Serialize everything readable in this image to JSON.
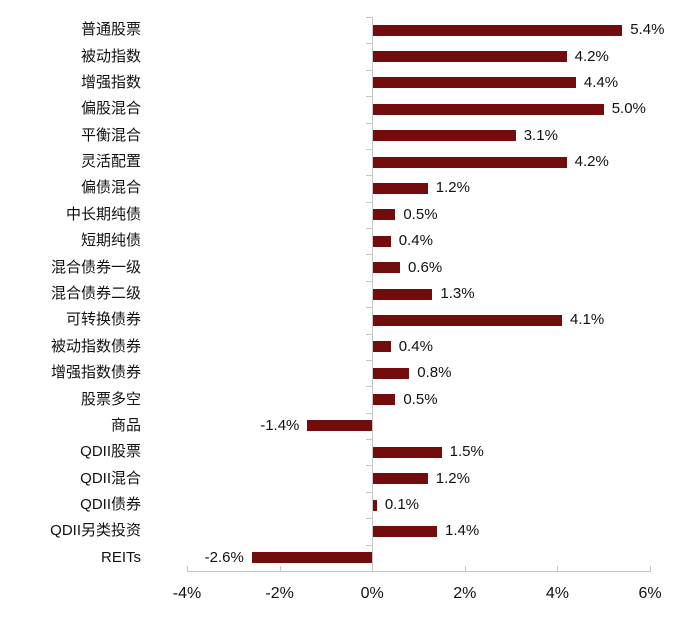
{
  "chart_data": {
    "type": "bar",
    "orientation": "horizontal",
    "title": "",
    "xlabel": "",
    "ylabel": "",
    "unit": "%",
    "xlim": [
      -4,
      6
    ],
    "grid": false,
    "legend": null,
    "x_ticks": [
      {
        "value": -4,
        "label": "-4%"
      },
      {
        "value": -2,
        "label": "-2%"
      },
      {
        "value": 0,
        "label": "0%"
      },
      {
        "value": 2,
        "label": "2%"
      },
      {
        "value": 4,
        "label": "4%"
      },
      {
        "value": 6,
        "label": "6%"
      }
    ],
    "bars": [
      {
        "category": "普通股票",
        "value": 5.4,
        "label": "5.4%"
      },
      {
        "category": "被动指数",
        "value": 4.2,
        "label": "4.2%"
      },
      {
        "category": "增强指数",
        "value": 4.4,
        "label": "4.4%"
      },
      {
        "category": "偏股混合",
        "value": 5.0,
        "label": "5.0%"
      },
      {
        "category": "平衡混合",
        "value": 3.1,
        "label": "3.1%"
      },
      {
        "category": "灵活配置",
        "value": 4.2,
        "label": "4.2%"
      },
      {
        "category": "偏债混合",
        "value": 1.2,
        "label": "1.2%"
      },
      {
        "category": "中长期纯债",
        "value": 0.5,
        "label": "0.5%"
      },
      {
        "category": "短期纯债",
        "value": 0.4,
        "label": "0.4%"
      },
      {
        "category": "混合债券一级",
        "value": 0.6,
        "label": "0.6%"
      },
      {
        "category": "混合债券二级",
        "value": 1.3,
        "label": "1.3%"
      },
      {
        "category": "可转换债券",
        "value": 4.1,
        "label": "4.1%"
      },
      {
        "category": "被动指数债券",
        "value": 0.4,
        "label": "0.4%"
      },
      {
        "category": "增强指数债券",
        "value": 0.8,
        "label": "0.8%"
      },
      {
        "category": "股票多空",
        "value": 0.5,
        "label": "0.5%"
      },
      {
        "category": "商品",
        "value": -1.4,
        "label": "-1.4%"
      },
      {
        "category": "QDII股票",
        "value": 1.5,
        "label": "1.5%"
      },
      {
        "category": "QDII混合",
        "value": 1.2,
        "label": "1.2%"
      },
      {
        "category": "QDII债券",
        "value": 0.1,
        "label": "0.1%"
      },
      {
        "category": "QDII另类投资",
        "value": 1.4,
        "label": "1.4%"
      },
      {
        "category": "REITs",
        "value": -2.6,
        "label": "-2.6%"
      }
    ],
    "colors": {
      "bar": "#730C0C",
      "axis": "#C6C6C6",
      "text": "#111111",
      "background": "#FFFFFF"
    }
  }
}
